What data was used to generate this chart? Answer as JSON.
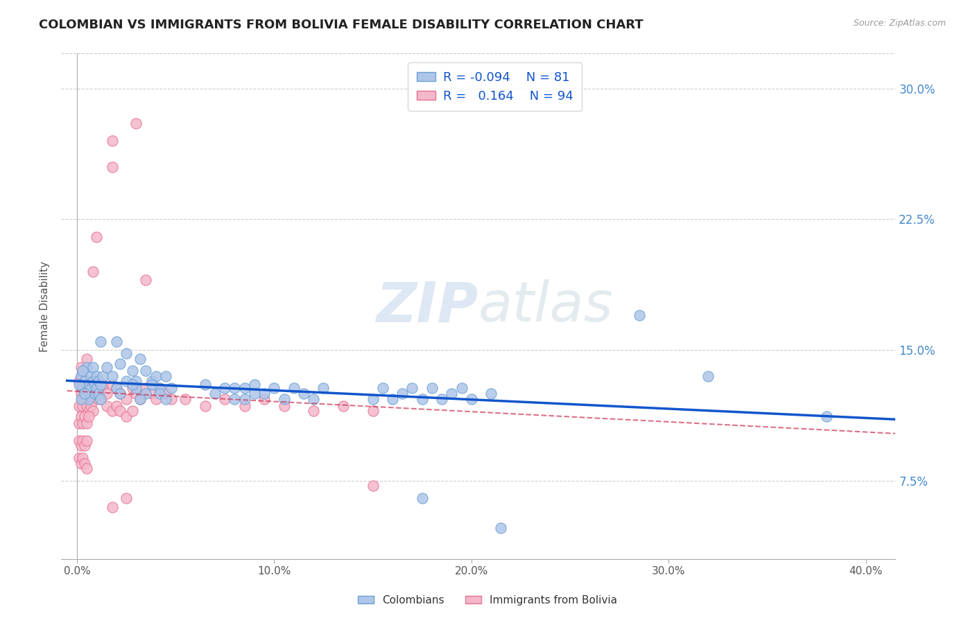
{
  "title": "COLOMBIAN VS IMMIGRANTS FROM BOLIVIA FEMALE DISABILITY CORRELATION CHART",
  "source": "Source: ZipAtlas.com",
  "ylabel": "Female Disability",
  "colombian_R": -0.094,
  "colombian_N": 81,
  "bolivia_R": 0.164,
  "bolivia_N": 94,
  "colombian_color": "#aec6e8",
  "colombian_edge": "#6b9fd4",
  "bolivia_color": "#f4b8ca",
  "bolivia_edge": "#e87090",
  "trend_colombian_color": "#1155cc",
  "trend_bolivia_color": "#cc3355",
  "trend_bolivia_dash_color": "#cc88aa",
  "watermark_color": "#d0dff0",
  "right_tick_color": "#4488cc",
  "xlim": [
    0.0,
    0.41
  ],
  "ylim": [
    0.03,
    0.32
  ],
  "xtick_vals": [
    0.0,
    0.1,
    0.2,
    0.3,
    0.4
  ],
  "xtick_labels": [
    "0.0%",
    "10.0%",
    "20.0%",
    "30.0%",
    "40.0%"
  ],
  "ytick_vals": [
    0.075,
    0.15,
    0.225,
    0.3
  ],
  "ytick_labels": [
    "7.5%",
    "15.0%",
    "22.5%",
    "30.0%"
  ]
}
